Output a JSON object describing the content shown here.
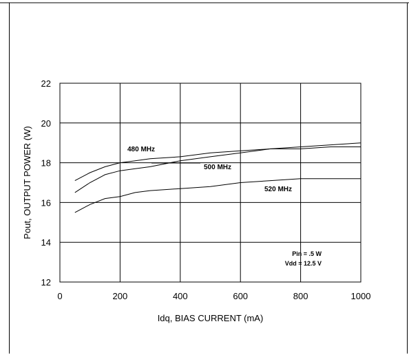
{
  "chart_data": {
    "type": "line",
    "xlabel": "Idq, BIAS CURRENT  (mA)",
    "ylabel": "Pout, OUTPUT POWER  (W)",
    "xlim": [
      0,
      1000
    ],
    "ylim": [
      12,
      22
    ],
    "xticks": [
      0,
      200,
      400,
      600,
      800,
      1000
    ],
    "yticks": [
      12,
      14,
      16,
      18,
      20,
      22
    ],
    "grid": true,
    "annotations": [
      "Pin = .5 W",
      "Vdd = 12.5 V"
    ],
    "series": [
      {
        "name": "480 MHz",
        "x": [
          50,
          100,
          150,
          200,
          250,
          300,
          400,
          500,
          600,
          700,
          800,
          900,
          1000
        ],
        "y": [
          17.1,
          17.5,
          17.8,
          18.0,
          18.1,
          18.2,
          18.3,
          18.5,
          18.6,
          18.7,
          18.7,
          18.8,
          18.8
        ]
      },
      {
        "name": "500 MHz",
        "x": [
          50,
          100,
          150,
          200,
          250,
          300,
          400,
          500,
          600,
          700,
          800,
          900,
          1000
        ],
        "y": [
          16.5,
          17.0,
          17.4,
          17.6,
          17.7,
          17.8,
          18.1,
          18.3,
          18.5,
          18.7,
          18.8,
          18.9,
          19.0
        ]
      },
      {
        "name": "520 MHz",
        "x": [
          50,
          100,
          150,
          200,
          250,
          300,
          400,
          500,
          600,
          700,
          800,
          900,
          1000
        ],
        "y": [
          15.5,
          15.9,
          16.2,
          16.3,
          16.5,
          16.6,
          16.7,
          16.8,
          17.0,
          17.1,
          17.2,
          17.2,
          17.2
        ]
      }
    ]
  }
}
